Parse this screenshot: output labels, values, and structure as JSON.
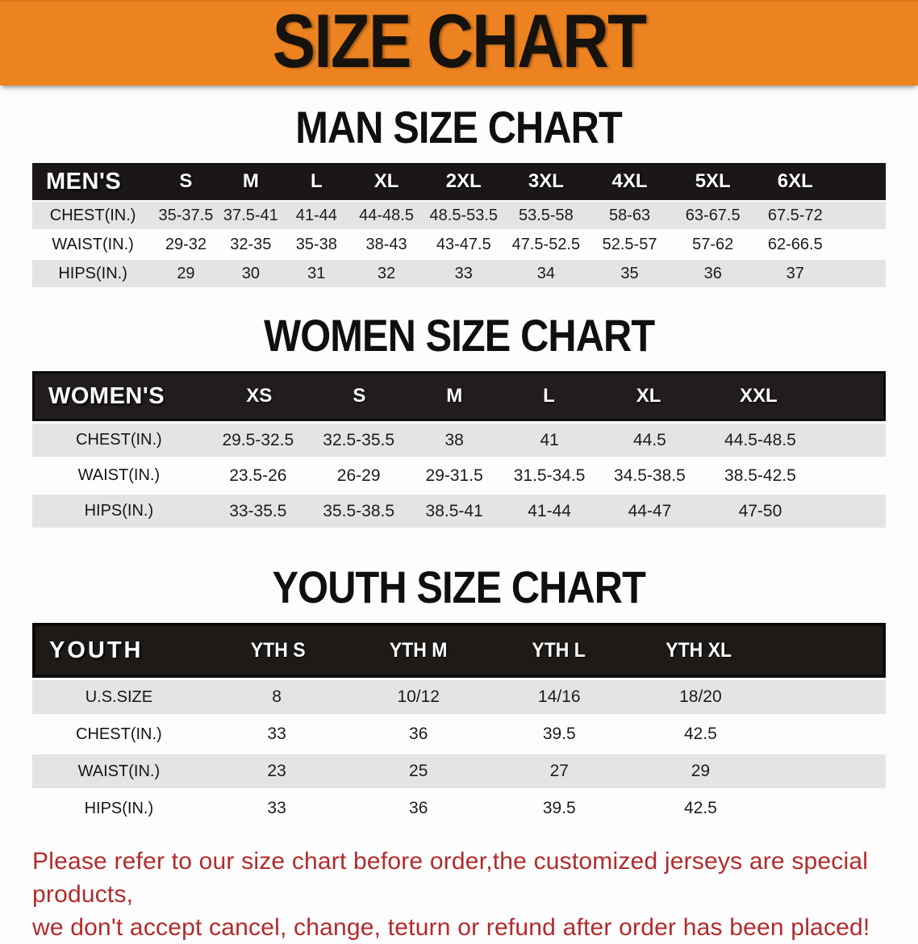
{
  "banner": {
    "title": "SIZE CHART"
  },
  "colors": {
    "banner_orange": "#ed8320",
    "header_black": "#1a1716",
    "row_gray": "#e4e4e4",
    "note_red": "#b42a2c"
  },
  "men": {
    "heading": "MAN SIZE CHART",
    "label": "MEN'S",
    "sizes": [
      "S",
      "M",
      "L",
      "XL",
      "2XL",
      "3XL",
      "4XL",
      "5XL",
      "6XL"
    ],
    "rows": [
      {
        "label": "CHEST(IN.)",
        "values": [
          "35-37.5",
          "37.5-41",
          "41-44",
          "44-48.5",
          "48.5-53.5",
          "53.5-58",
          "58-63",
          "63-67.5",
          "67.5-72"
        ]
      },
      {
        "label": "WAIST(IN.)",
        "values": [
          "29-32",
          "32-35",
          "35-38",
          "38-43",
          "43-47.5",
          "47.5-52.5",
          "52.5-57",
          "57-62",
          "62-66.5"
        ]
      },
      {
        "label": "HIPS(IN.)",
        "values": [
          "29",
          "30",
          "31",
          "32",
          "33",
          "34",
          "35",
          "36",
          "37"
        ]
      }
    ]
  },
  "women": {
    "heading": "WOMEN SIZE CHART",
    "label": "WOMEN'S",
    "sizes": [
      "XS",
      "S",
      "M",
      "L",
      "XL",
      "XXL"
    ],
    "rows": [
      {
        "label": "CHEST(IN.)",
        "values": [
          "29.5-32.5",
          "32.5-35.5",
          "38",
          "41",
          "44.5",
          "44.5-48.5"
        ]
      },
      {
        "label": "WAIST(IN.)",
        "values": [
          "23.5-26",
          "26-29",
          "29-31.5",
          "31.5-34.5",
          "34.5-38.5",
          "38.5-42.5"
        ]
      },
      {
        "label": "HIPS(IN.)",
        "values": [
          "33-35.5",
          "35.5-38.5",
          "38.5-41",
          "41-44",
          "44-47",
          "47-50"
        ]
      }
    ]
  },
  "youth": {
    "heading": "YOUTH SIZE CHART",
    "label": "YOUTH",
    "sizes": [
      "YTH S",
      "YTH M",
      "YTH L",
      "YTH XL"
    ],
    "rows": [
      {
        "label": "U.S.SIZE",
        "values": [
          "8",
          "10/12",
          "14/16",
          "18/20"
        ]
      },
      {
        "label": "CHEST(IN.)",
        "values": [
          "33",
          "36",
          "39.5",
          "42.5"
        ]
      },
      {
        "label": "WAIST(IN.)",
        "values": [
          "23",
          "25",
          "27",
          "29"
        ]
      },
      {
        "label": "HIPS(IN.)",
        "values": [
          "33",
          "36",
          "39.5",
          "42.5"
        ]
      }
    ]
  },
  "footer": {
    "line1": "Please refer to our size chart before order,the customized jerseys are special products,",
    "line2": "we don't accept cancel, change, teturn or refund after order has been placed!"
  }
}
